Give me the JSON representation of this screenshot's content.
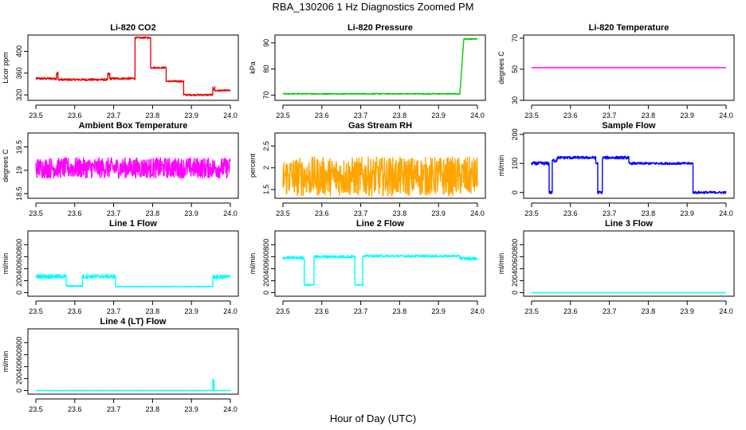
{
  "title": "RBA_130206  1 Hz Diagnostics Zoomed PM",
  "xlabel": "Hour of Day (UTC)",
  "colors": {
    "red": "#ee0000",
    "green": "#00cc00",
    "magenta": "#ff00ff",
    "orange": "#ffa500",
    "blue": "#0000ff",
    "cyan": "#00ffff",
    "axis": "#000000"
  },
  "chart_data": [
    {
      "type": "line",
      "title": "Li-820 CO2",
      "ylabel": "Licor ppm",
      "color": "red",
      "xlim": [
        23.5,
        24.0
      ],
      "xticks": [
        "23.5",
        "23.6",
        "23.7",
        "23.8",
        "23.9",
        "24.0"
      ],
      "ylim": [
        310,
        430
      ],
      "yticks": [
        320,
        360,
        400
      ],
      "series": [
        {
          "name": "CO2",
          "segments": [
            {
              "x0": 23.5,
              "x1": 23.553,
              "y": 350,
              "noise": 2
            },
            {
              "x0": 23.553,
              "x1": 23.557,
              "y": 360,
              "noise": 3
            },
            {
              "x0": 23.557,
              "x1": 23.685,
              "y": 348,
              "noise": 2
            },
            {
              "x0": 23.685,
              "x1": 23.69,
              "y": 358,
              "noise": 3
            },
            {
              "x0": 23.69,
              "x1": 23.755,
              "y": 350,
              "noise": 2
            },
            {
              "x0": 23.755,
              "x1": 23.795,
              "y": 425,
              "noise": 1.5
            },
            {
              "x0": 23.795,
              "x1": 23.835,
              "y": 370,
              "noise": 1.5
            },
            {
              "x0": 23.835,
              "x1": 23.88,
              "y": 345,
              "noise": 1.5
            },
            {
              "x0": 23.88,
              "x1": 23.955,
              "y": 320,
              "noise": 1.5
            },
            {
              "x0": 23.955,
              "x1": 23.96,
              "y": 332,
              "noise": 4
            },
            {
              "x0": 23.96,
              "x1": 24.0,
              "y": 328,
              "noise": 1.5
            }
          ]
        }
      ]
    },
    {
      "type": "line",
      "title": "Li-820 Pressure",
      "ylabel": "kPa",
      "color": "green",
      "xlim": [
        23.5,
        24.0
      ],
      "xticks": [
        "23.5",
        "23.6",
        "23.7",
        "23.8",
        "23.9",
        "24.0"
      ],
      "ylim": [
        68,
        93
      ],
      "yticks": [
        70,
        80,
        90
      ],
      "series": [
        {
          "name": "Pressure",
          "segments": [
            {
              "x0": 23.5,
              "x1": 23.955,
              "y": 70.5,
              "noise": 0.2
            },
            {
              "x0": 23.955,
              "x1": 23.965,
              "y0": 70.5,
              "y1": 91.5,
              "noise": 0.3
            },
            {
              "x0": 23.965,
              "x1": 24.0,
              "y": 91.5,
              "noise": 0.2
            }
          ]
        }
      ]
    },
    {
      "type": "line",
      "title": "Li-820 Temperature",
      "ylabel": "degrees C",
      "color": "magenta",
      "xlim": [
        23.5,
        24.0
      ],
      "xticks": [
        "23.5",
        "23.6",
        "23.7",
        "23.8",
        "23.9",
        "24.0"
      ],
      "ylim": [
        30,
        72
      ],
      "yticks": [
        30,
        50,
        70
      ],
      "series": [
        {
          "name": "Temperature",
          "segments": [
            {
              "x0": 23.5,
              "x1": 24.0,
              "y": 51,
              "noise": 0
            }
          ]
        }
      ]
    },
    {
      "type": "line",
      "title": "Ambient Box Temperature",
      "ylabel": "degrees C",
      "color": "magenta",
      "xlim": [
        23.5,
        24.0
      ],
      "xticks": [
        "23.5",
        "23.6",
        "23.7",
        "23.8",
        "23.9",
        "24.0"
      ],
      "ylim": [
        18.4,
        19.8
      ],
      "yticks": [
        18.5,
        19.0,
        19.5
      ],
      "series": [
        {
          "name": "Box Temp",
          "segments": [
            {
              "x0": 23.5,
              "x1": 24.0,
              "y": 19.05,
              "noise": 0.22
            }
          ]
        }
      ]
    },
    {
      "type": "line",
      "title": "Gas Stream RH",
      "ylabel": "percent",
      "color": "orange",
      "xlim": [
        23.5,
        24.0
      ],
      "xticks": [
        "23.5",
        "23.6",
        "23.7",
        "23.8",
        "23.9",
        "24.0"
      ],
      "ylim": [
        1.3,
        2.8
      ],
      "yticks": [
        1.5,
        2.0,
        2.5
      ],
      "series": [
        {
          "name": "RH",
          "segments": [
            {
              "x0": 23.5,
              "x1": 24.0,
              "y": 1.8,
              "noise": 0.45
            }
          ]
        }
      ]
    },
    {
      "type": "line",
      "title": "Sample Flow",
      "ylabel": "ml/min",
      "color": "blue",
      "xlim": [
        23.5,
        24.0
      ],
      "xticks": [
        "23.5",
        "23.6",
        "23.7",
        "23.8",
        "23.9",
        "24.0"
      ],
      "ylim": [
        -20,
        205
      ],
      "yticks": [
        0,
        100,
        200
      ],
      "series": [
        {
          "name": "Sample Flow",
          "segments": [
            {
              "x0": 23.5,
              "x1": 23.545,
              "y": 100,
              "noise": 6
            },
            {
              "x0": 23.545,
              "x1": 23.553,
              "y": 0,
              "noise": 5
            },
            {
              "x0": 23.553,
              "x1": 23.565,
              "y": 110,
              "noise": 6
            },
            {
              "x0": 23.565,
              "x1": 23.665,
              "y": 120,
              "noise": 5
            },
            {
              "x0": 23.665,
              "x1": 23.67,
              "y": 100,
              "noise": 5
            },
            {
              "x0": 23.67,
              "x1": 23.682,
              "y": 0,
              "noise": 5
            },
            {
              "x0": 23.682,
              "x1": 23.75,
              "y": 120,
              "noise": 5
            },
            {
              "x0": 23.75,
              "x1": 23.915,
              "y": 100,
              "noise": 4
            },
            {
              "x0": 23.915,
              "x1": 24.0,
              "y": 0,
              "noise": 4
            }
          ]
        }
      ]
    },
    {
      "type": "line",
      "title": "Line 1 Flow",
      "ylabel": "ml/min",
      "color": "cyan",
      "xlim": [
        23.5,
        24.0
      ],
      "xticks": [
        "23.5",
        "23.6",
        "23.7",
        "23.8",
        "23.9",
        "24.0"
      ],
      "ylim": [
        -60,
        1030
      ],
      "yticks": [
        0,
        200,
        400,
        600,
        800
      ],
      "series": [
        {
          "name": "Line 1",
          "segments": [
            {
              "x0": 23.5,
              "x1": 23.578,
              "y": 270,
              "noise": 35
            },
            {
              "x0": 23.578,
              "x1": 23.62,
              "y": 110,
              "noise": 10
            },
            {
              "x0": 23.62,
              "x1": 23.705,
              "y": 270,
              "noise": 35
            },
            {
              "x0": 23.705,
              "x1": 23.955,
              "y": 100,
              "noise": 6
            },
            {
              "x0": 23.955,
              "x1": 24.0,
              "y": 260,
              "noise": 35
            }
          ]
        }
      ]
    },
    {
      "type": "line",
      "title": "Line 2 Flow",
      "ylabel": "ml/min",
      "color": "cyan",
      "xlim": [
        23.5,
        24.0
      ],
      "xticks": [
        "23.5",
        "23.6",
        "23.7",
        "23.8",
        "23.9",
        "24.0"
      ],
      "ylim": [
        -60,
        1030
      ],
      "yticks": [
        0,
        200,
        400,
        600,
        800
      ],
      "series": [
        {
          "name": "Line 2",
          "segments": [
            {
              "x0": 23.5,
              "x1": 23.555,
              "y": 580,
              "noise": 25
            },
            {
              "x0": 23.555,
              "x1": 23.58,
              "y": 130,
              "noise": 10
            },
            {
              "x0": 23.58,
              "x1": 23.685,
              "y": 600,
              "noise": 25
            },
            {
              "x0": 23.685,
              "x1": 23.705,
              "y": 130,
              "noise": 10
            },
            {
              "x0": 23.705,
              "x1": 23.955,
              "y": 610,
              "noise": 18
            },
            {
              "x0": 23.955,
              "x1": 24.0,
              "y": 570,
              "noise": 25
            }
          ]
        }
      ]
    },
    {
      "type": "line",
      "title": "Line 3 Flow",
      "ylabel": "ml/min",
      "color": "cyan",
      "xlim": [
        23.5,
        24.0
      ],
      "xticks": [
        "23.5",
        "23.6",
        "23.7",
        "23.8",
        "23.9",
        "24.0"
      ],
      "ylim": [
        -60,
        1030
      ],
      "yticks": [
        0,
        200,
        400,
        600,
        800
      ],
      "series": [
        {
          "name": "Line 3",
          "segments": [
            {
              "x0": 23.5,
              "x1": 24.0,
              "y": 0,
              "noise": 0
            }
          ]
        }
      ]
    },
    {
      "type": "line",
      "title": "Line 4 (LT) Flow",
      "ylabel": "ml/min",
      "color": "cyan",
      "xlim": [
        23.5,
        24.0
      ],
      "xticks": [
        "23.5",
        "23.6",
        "23.7",
        "23.8",
        "23.9",
        "24.0"
      ],
      "ylim": [
        -60,
        1030
      ],
      "yticks": [
        0,
        200,
        400,
        600,
        800
      ],
      "series": [
        {
          "name": "Line 4",
          "segments": [
            {
              "x0": 23.5,
              "x1": 23.955,
              "y": 0,
              "noise": 3
            },
            {
              "x0": 23.955,
              "x1": 23.958,
              "y": 180,
              "noise": 10
            },
            {
              "x0": 23.958,
              "x1": 24.0,
              "y": 0,
              "noise": 3
            }
          ]
        }
      ]
    }
  ]
}
